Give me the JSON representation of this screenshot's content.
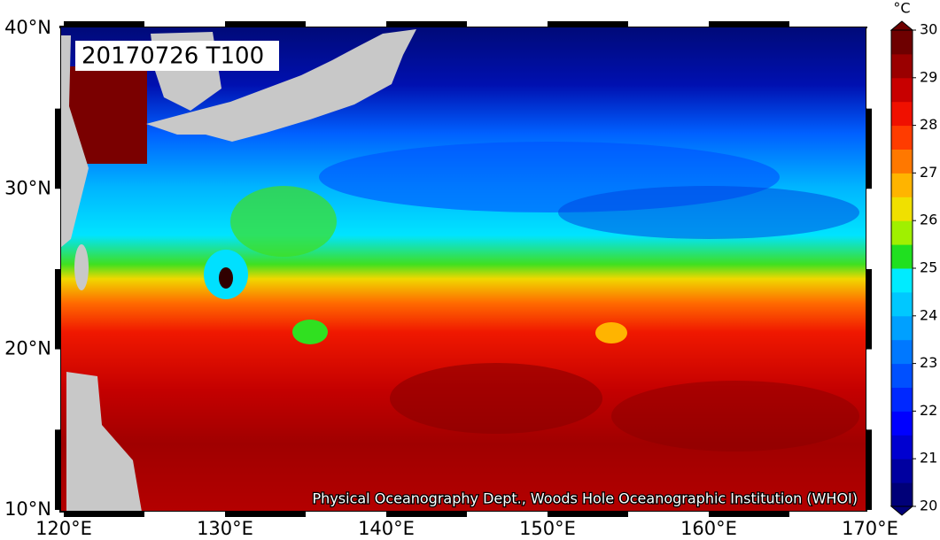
{
  "map": {
    "title": "20170726 T100",
    "credit": "Physical Oceanography Dept., Woods Hole Oceanographic Institution (WHOI)",
    "lon_labels": [
      "120°E",
      "130°E",
      "140°E",
      "150°E",
      "160°E",
      "170°E"
    ],
    "lat_labels": [
      "40°N",
      "30°N",
      "20°N",
      "10°N"
    ]
  },
  "colorbar": {
    "unit": "°C",
    "range": [
      20,
      30
    ],
    "ticks": [
      20,
      21,
      22,
      23,
      24,
      25,
      26,
      27,
      28,
      29,
      30
    ],
    "colors": [
      "#000078",
      "#0000a0",
      "#0000d0",
      "#0000ff",
      "#0028ff",
      "#0050ff",
      "#0078ff",
      "#00a0ff",
      "#00c8ff",
      "#00ebff",
      "#20e020",
      "#a0f000",
      "#f0e000",
      "#ffb400",
      "#ff7800",
      "#ff3c00",
      "#f01000",
      "#c80000",
      "#9a0000",
      "#6e0000"
    ]
  }
}
